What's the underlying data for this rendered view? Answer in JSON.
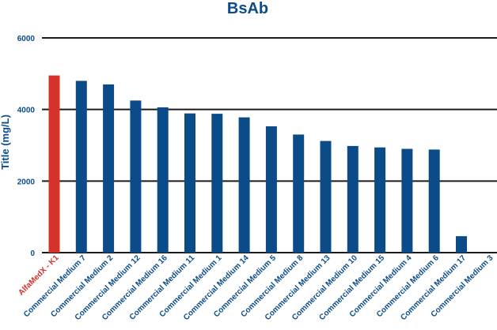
{
  "chart_data": {
    "type": "bar",
    "title": "BsAb",
    "xlabel": "",
    "ylabel": "Title (mg/L)",
    "ylim": [
      0,
      6000
    ],
    "yticks": [
      "0",
      "2000",
      "4000",
      "6000"
    ],
    "grid": true,
    "categories": [
      "AlfaMedX - K1",
      "Commercial Medium 7",
      "Commercial Medium 2",
      "Commercial Medium 12",
      "Commercial Medium 16",
      "Commercial Medium 11",
      "Commercial Medium 1",
      "Commercial Medium 14",
      "Commercial Medium 5",
      "Commercial Medium 8",
      "Commercial Medium 13",
      "Commercial Medium 10",
      "Commercial Medium 15",
      "Commercial Medium 4",
      "Commercial Medium 6",
      "Commercial Medium 17",
      "Commercial Medium 3"
    ],
    "values": [
      4950,
      4800,
      4700,
      4250,
      4060,
      3890,
      3880,
      3780,
      3530,
      3300,
      3120,
      2980,
      2940,
      2900,
      2880,
      460,
      0
    ],
    "highlight_index": 0,
    "colors": {
      "bar": "#0b4c88",
      "highlight": "#d6322a",
      "grid": "#1a1a1a",
      "text": "#0b4c88"
    }
  }
}
